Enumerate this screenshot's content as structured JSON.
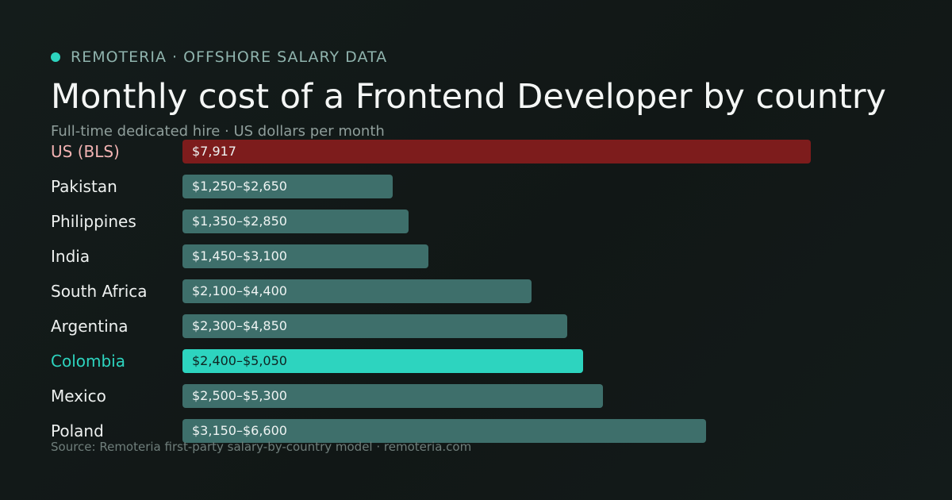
{
  "header": {
    "brand": "REMOTERIA · OFFSHORE SALARY DATA",
    "title": "Monthly cost of a Frontend Developer by country",
    "subtitle": "Full-time dedicated hire · US dollars per month"
  },
  "source": "Source: Remoteria first-party salary-by-country model · remoteria.com",
  "colors": {
    "accent": "#2dd4bf",
    "benchmark": "#7d1c1c",
    "benchmark_label": "#f2b3b3",
    "default_bar": "#3e6f6b",
    "highlight_label_text": "#0f2522"
  },
  "chart_data": {
    "type": "bar",
    "orientation": "horizontal",
    "unit": "USD per month",
    "xlim": [
      0,
      11000
    ],
    "grid": false,
    "rows": [
      {
        "country": "US (BLS)",
        "low": 7917,
        "high": 7917,
        "label": "$7,917",
        "style": "benchmark"
      },
      {
        "country": "Pakistan",
        "low": 1250,
        "high": 2650,
        "label": "$1,250–$2,650",
        "style": "default"
      },
      {
        "country": "Philippines",
        "low": 1350,
        "high": 2850,
        "label": "$1,350–$2,850",
        "style": "default"
      },
      {
        "country": "India",
        "low": 1450,
        "high": 3100,
        "label": "$1,450–$3,100",
        "style": "default"
      },
      {
        "country": "South Africa",
        "low": 2100,
        "high": 4400,
        "label": "$2,100–$4,400",
        "style": "default"
      },
      {
        "country": "Argentina",
        "low": 2300,
        "high": 4850,
        "label": "$2,300–$4,850",
        "style": "default"
      },
      {
        "country": "Colombia",
        "low": 2400,
        "high": 5050,
        "label": "$2,400–$5,050",
        "style": "highlight"
      },
      {
        "country": "Mexico",
        "low": 2500,
        "high": 5300,
        "label": "$2,500–$5,300",
        "style": "default"
      },
      {
        "country": "Poland",
        "low": 3150,
        "high": 6600,
        "label": "$3,150–$6,600",
        "style": "default"
      }
    ]
  }
}
